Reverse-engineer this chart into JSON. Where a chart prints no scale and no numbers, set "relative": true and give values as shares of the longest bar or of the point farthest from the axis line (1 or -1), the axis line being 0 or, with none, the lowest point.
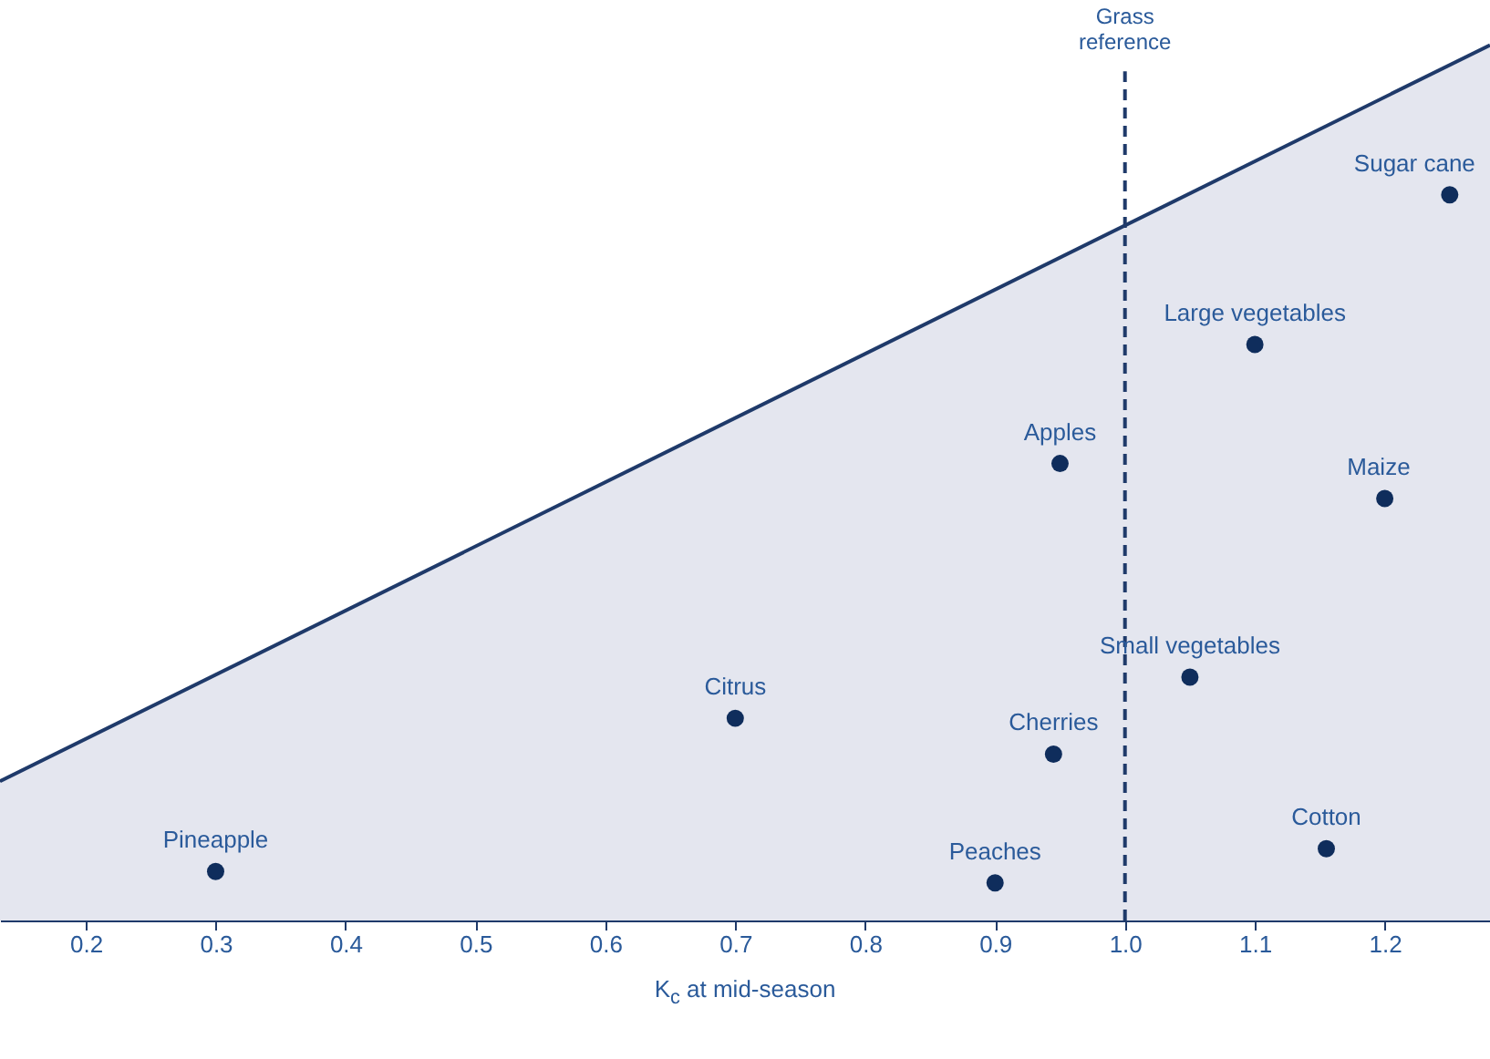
{
  "chart_data": {
    "type": "scatter",
    "xlabel": "K$_{c}$ at mid-season",
    "relative": true,
    "xlim": [
      0.134,
      1.281
    ],
    "xticks": [
      0.2,
      0.3,
      0.4,
      0.5,
      0.6,
      0.7,
      0.8,
      0.9,
      {
        "value": 1,
        "label": "1.0"
      },
      1.1,
      1.2
    ],
    "grid": false,
    "series": [
      {
        "color": "#0f2d5c",
        "marker": "circle",
        "x": [
          0.3,
          0.9,
          1.155,
          0.945,
          0.7,
          1.05,
          0.95,
          1.2,
          1.1,
          1.25
        ],
        "values": [
          0.056,
          0.043,
          0.082,
          0.19,
          0.231,
          0.278,
          0.522,
          0.482,
          0.658,
          0.829
        ]
      },
      {
        "type": "area",
        "color": "#d9dce8",
        "x": [
          0.134,
          1.281
        ],
        "values": [
          0.159,
          1
        ]
      }
    ],
    "ref_lines": [
      {
        "axis": "x",
        "value": 1.0,
        "label": "Grass reference",
        "line_style": "dashed",
        "color": "#1f3a6a"
      }
    ],
    "annotations": [
      {
        "text": "Pineapple",
        "x": 0.3,
        "y": 0.056
      },
      {
        "text": "Peaches",
        "x": 0.9,
        "y": 0.043
      },
      {
        "text": "Cotton",
        "x": 1.155,
        "y": 0.082
      },
      {
        "text": "Cherries",
        "x": 0.945,
        "y": 0.19
      },
      {
        "text": "Citrus",
        "x": 0.7,
        "y": 0.231
      },
      {
        "text": "Small vegetables",
        "x": 1.05,
        "y": 0.278
      },
      {
        "text": "Apples",
        "x": 0.95,
        "y": 0.522
      },
      {
        "text": "Maize",
        "x": 1.2,
        "y": 0.482
      },
      {
        "text": "Large vegetables",
        "x": 1.1,
        "y": 0.658
      },
      {
        "text": "Sugar cane",
        "x": 1.25,
        "y": 0.829
      }
    ]
  }
}
